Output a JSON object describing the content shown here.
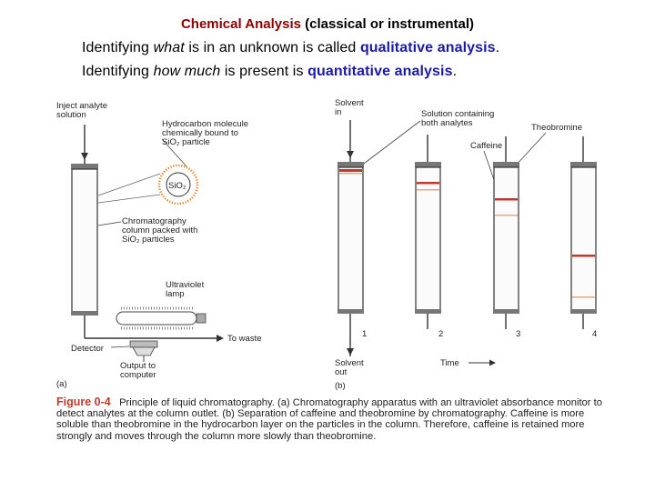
{
  "header": {
    "title_part1": "Chemical Analysis",
    "title_part2": " (classical or instrumental)"
  },
  "lines": {
    "l1_a": "Identifying ",
    "l1_b": "what",
    "l1_c": " is in an unknown is called ",
    "l1_d": "qualitative analysis",
    "l1_e": ".",
    "l2_a": "Identifying ",
    "l2_b": "how much",
    "l2_c": " is present is ",
    "l2_d": "quantitative analysis",
    "l2_e": "."
  },
  "figure_a": {
    "inject_1": "Inject analyte",
    "inject_2": "solution",
    "hydro_1": "Hydrocarbon molecule",
    "hydro_2": "chemically bound to",
    "hydro_3": "SiO₂ particle",
    "sio2": "SiO₂",
    "column_1": "Chromatography",
    "column_2": "column packed with",
    "column_3": "SiO₂ particles",
    "uv_1": "Ultraviolet",
    "uv_2": "lamp",
    "waste": "To waste",
    "detector": "Detector",
    "output_1": "Output to",
    "output_2": "computer",
    "panel": "(a)"
  },
  "figure_b": {
    "solvent_in_1": "Solvent",
    "solvent_in_2": "in",
    "solution_1": "Solution containing",
    "solution_2": "both analytes",
    "caffeine": "Caffeine",
    "theobromine": "Theobromine",
    "col1": "1",
    "col2": "2",
    "col3": "3",
    "col4": "4",
    "solvent_out_1": "Solvent",
    "solvent_out_2": "out",
    "time": "Time",
    "panel": "(b)"
  },
  "caption": {
    "fig": "Figure 0-4",
    "text": "Principle of liquid chromatography. (a) Chromatography apparatus with an ultraviolet absorbance monitor to detect analytes at the column outlet. (b) Separation of caffeine and theobromine by chromatography. Caffeine is more soluble than theobromine in the hydrocarbon layer on the particles in the column. Therefore, caffeine is retained more strongly and moves through the column more slowly than theobromine."
  },
  "colors": {
    "band_dark": "#c0392b",
    "band_light": "#e8a87c",
    "title_accent": "#8b0000",
    "highlight": "#1a1aa6"
  }
}
